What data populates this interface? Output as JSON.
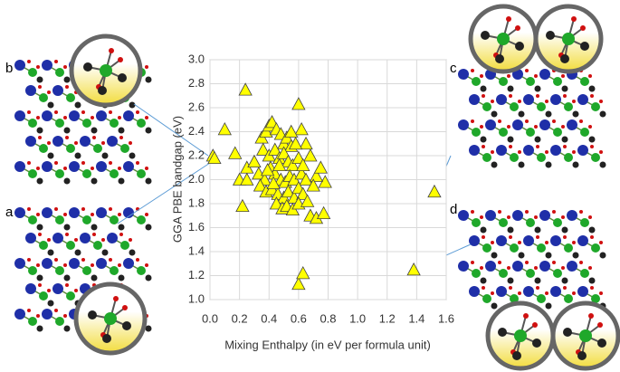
{
  "chart_data": {
    "type": "scatter",
    "xlabel": "Mixing Enthalpy (in eV per formula unit)",
    "ylabel": "GGA PBE bandgap (eV)",
    "panel_labels": [
      "b",
      "a",
      "c",
      "d"
    ],
    "color": "#ffff00",
    "x": [
      0.02,
      0.03,
      0.1,
      0.2,
      0.17,
      0.24,
      0.22,
      0.25,
      0.25,
      0.6,
      0.6,
      0.63,
      1.38,
      1.52,
      0.68,
      0.72,
      0.77,
      0.78,
      0.72,
      0.75,
      0.68,
      0.62,
      0.65,
      0.35,
      0.38,
      0.4,
      0.42,
      0.45,
      0.48,
      0.5,
      0.52,
      0.55,
      0.58,
      0.36,
      0.4,
      0.44,
      0.47,
      0.5,
      0.53,
      0.56,
      0.6,
      0.3,
      0.33,
      0.37,
      0.41,
      0.44,
      0.48,
      0.51,
      0.54,
      0.57,
      0.62,
      0.65,
      0.34,
      0.38,
      0.42,
      0.46,
      0.5,
      0.53,
      0.57,
      0.6,
      0.63,
      0.45,
      0.49,
      0.52,
      0.56,
      0.6,
      0.66,
      0.43,
      0.39,
      0.47,
      0.55,
      0.63,
      0.7
    ],
    "values": [
      2.2,
      2.18,
      2.42,
      2.0,
      2.22,
      2.75,
      1.78,
      2.0,
      2.1,
      2.63,
      1.13,
      1.22,
      1.25,
      1.9,
      1.7,
      1.68,
      1.72,
      1.98,
      2.03,
      2.1,
      2.2,
      2.42,
      2.3,
      2.35,
      2.4,
      2.45,
      2.48,
      2.42,
      2.38,
      2.3,
      2.35,
      2.28,
      2.3,
      2.25,
      2.2,
      2.25,
      2.18,
      2.22,
      2.15,
      2.12,
      2.18,
      2.15,
      2.05,
      2.0,
      2.1,
      2.05,
      2.0,
      1.98,
      2.03,
      2.0,
      2.05,
      2.0,
      1.95,
      1.9,
      1.92,
      1.88,
      1.85,
      1.9,
      1.85,
      1.93,
      1.88,
      1.8,
      1.76,
      1.78,
      1.75,
      1.8,
      1.82,
      1.97,
      2.08,
      2.12,
      2.4,
      2.12,
      1.95
    ],
    "xlim": [
      0,
      1.6
    ],
    "ylim": [
      1,
      3
    ],
    "xticks": [
      {
        "value": 0,
        "label": "0.0"
      },
      0.2,
      0.4,
      0.6,
      0.8,
      {
        "value": 1,
        "label": "1.0"
      },
      1.2,
      1.4,
      1.6
    ],
    "yticks": [
      {
        "value": 1,
        "label": "1.0"
      },
      1.2,
      1.4,
      1.6,
      1.8,
      {
        "value": 2,
        "label": "2.0"
      },
      2.2,
      2.4,
      2.6,
      2.8,
      {
        "value": 3,
        "label": "3.0"
      }
    ],
    "grid": true
  }
}
